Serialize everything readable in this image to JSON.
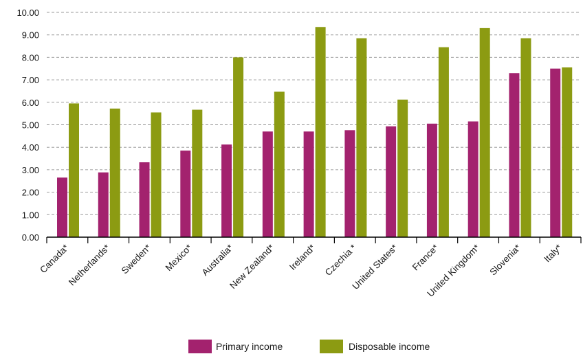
{
  "chart_data": {
    "type": "bar",
    "categories": [
      "Canada*",
      "Netherlands*",
      "Sweden*",
      "Mexico*",
      "Australia*",
      "New Zealand*",
      "Ireland*",
      "Czechia *",
      "United States*",
      "France*",
      "United Kingdom*",
      "Slovenia*",
      "Italy*"
    ],
    "series": [
      {
        "name": "Primary income",
        "color": "#a3226e",
        "values": [
          2.65,
          2.88,
          3.33,
          3.85,
          4.12,
          4.7,
          4.7,
          4.76,
          4.93,
          5.05,
          5.15,
          7.3,
          7.5
        ]
      },
      {
        "name": "Disposable income",
        "color": "#8c9b12",
        "values": [
          5.95,
          5.72,
          5.55,
          5.67,
          8.0,
          6.47,
          9.35,
          8.85,
          6.12,
          8.45,
          9.3,
          8.85,
          7.55
        ]
      }
    ],
    "yticks": [
      "0.00",
      "1.00",
      "2.00",
      "3.00",
      "4.00",
      "5.00",
      "6.00",
      "7.00",
      "8.00",
      "9.00",
      "10.00"
    ],
    "ylim": [
      0,
      10
    ],
    "grid": "horizontal-dashed",
    "legend": "bottom-center",
    "title": "",
    "xlabel": "",
    "ylabel": ""
  }
}
